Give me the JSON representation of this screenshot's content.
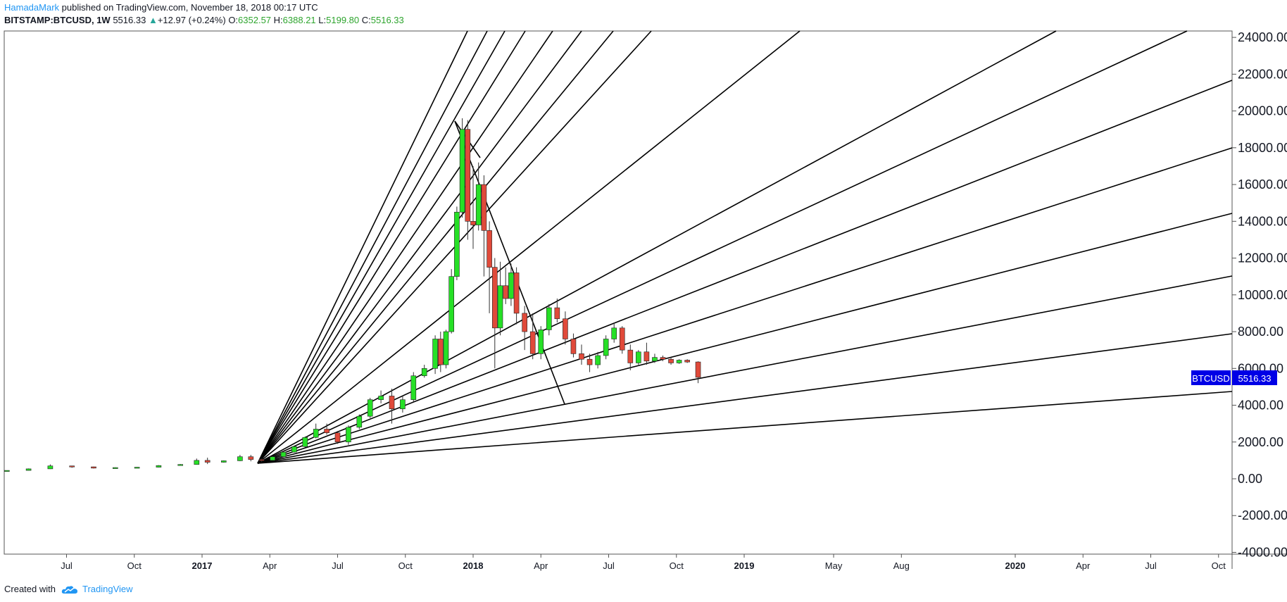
{
  "header": {
    "author": "HamadaMark",
    "published_text": "published on TradingView.com, November 18, 2018 00:17 UTC",
    "symbol": "BITSTAMP:BTCUSD, 1W",
    "last": "5516.33",
    "change": "+12.97 (+0.24%)",
    "o_label": "O:",
    "o_value": "6352.57",
    "h_label": "H:",
    "h_value": "6388.21",
    "l_label": "L:",
    "l_value": "5199.80",
    "c_label": "C:",
    "c_value": "5516.33"
  },
  "footer": {
    "created_with": "Created with",
    "brand": "TradingView"
  },
  "colors": {
    "up": "#26e026",
    "down": "#e04a3a",
    "label_bg": "#0000e6",
    "line": "#000000"
  },
  "chart_data": {
    "type": "candlestick",
    "title": "BITSTAMP:BTCUSD, 1W",
    "price_label": {
      "symbol": "BTCUSD",
      "value": "5516.33"
    },
    "y_ticks": [
      {
        "v": 24000,
        "label": "24000.00"
      },
      {
        "v": 22000,
        "label": "22000.00"
      },
      {
        "v": 20000,
        "label": "20000.00"
      },
      {
        "v": 18000,
        "label": "18000.00"
      },
      {
        "v": 16000,
        "label": "16000.00"
      },
      {
        "v": 14000,
        "label": "14000.00"
      },
      {
        "v": 12000,
        "label": "12000.00"
      },
      {
        "v": 10000,
        "label": "10000.00"
      },
      {
        "v": 8000,
        "label": "8000.00"
      },
      {
        "v": 6000,
        "label": "6000.00"
      },
      {
        "v": 4000,
        "label": "4000.00"
      },
      {
        "v": 2000,
        "label": "2000.00"
      },
      {
        "v": 0,
        "label": "0.00"
      },
      {
        "v": -2000,
        "label": "-2000.00"
      },
      {
        "v": -4000,
        "label": "-4000.00"
      }
    ],
    "x_ticks": [
      {
        "t": 2016.5,
        "label": "Jul",
        "bold": false
      },
      {
        "t": 2016.75,
        "label": "Oct",
        "bold": false
      },
      {
        "t": 2017.0,
        "label": "2017",
        "bold": true
      },
      {
        "t": 2017.25,
        "label": "Apr",
        "bold": false
      },
      {
        "t": 2017.5,
        "label": "Jul",
        "bold": false
      },
      {
        "t": 2017.75,
        "label": "Oct",
        "bold": false
      },
      {
        "t": 2018.0,
        "label": "2018",
        "bold": true
      },
      {
        "t": 2018.25,
        "label": "Apr",
        "bold": false
      },
      {
        "t": 2018.5,
        "label": "Jul",
        "bold": false
      },
      {
        "t": 2018.75,
        "label": "Oct",
        "bold": false
      },
      {
        "t": 2019.0,
        "label": "2019",
        "bold": true
      },
      {
        "t": 2019.33,
        "label": "May",
        "bold": false
      },
      {
        "t": 2019.58,
        "label": "Aug",
        "bold": false
      },
      {
        "t": 2020.0,
        "label": "2020",
        "bold": true
      },
      {
        "t": 2020.25,
        "label": "Apr",
        "bold": false
      },
      {
        "t": 2020.5,
        "label": "Jul",
        "bold": false
      },
      {
        "t": 2020.75,
        "label": "Oct",
        "bold": false
      }
    ],
    "candles": [
      {
        "t": 2016.2,
        "o": 430,
        "h": 440,
        "l": 420,
        "c": 435
      },
      {
        "t": 2016.28,
        "o": 435,
        "h": 460,
        "l": 430,
        "c": 455
      },
      {
        "t": 2016.36,
        "o": 455,
        "h": 560,
        "l": 450,
        "c": 540
      },
      {
        "t": 2016.44,
        "o": 540,
        "h": 780,
        "l": 530,
        "c": 700
      },
      {
        "t": 2016.52,
        "o": 700,
        "h": 710,
        "l": 600,
        "c": 650
      },
      {
        "t": 2016.6,
        "o": 650,
        "h": 660,
        "l": 560,
        "c": 580
      },
      {
        "t": 2016.68,
        "o": 580,
        "h": 620,
        "l": 570,
        "c": 610
      },
      {
        "t": 2016.76,
        "o": 610,
        "h": 640,
        "l": 600,
        "c": 630
      },
      {
        "t": 2016.84,
        "o": 630,
        "h": 740,
        "l": 620,
        "c": 720
      },
      {
        "t": 2016.92,
        "o": 720,
        "h": 800,
        "l": 710,
        "c": 780
      },
      {
        "t": 2016.98,
        "o": 780,
        "h": 1100,
        "l": 770,
        "c": 1000
      },
      {
        "t": 2017.02,
        "o": 1000,
        "h": 1150,
        "l": 800,
        "c": 900
      },
      {
        "t": 2017.08,
        "o": 900,
        "h": 1000,
        "l": 880,
        "c": 980
      },
      {
        "t": 2017.14,
        "o": 980,
        "h": 1300,
        "l": 960,
        "c": 1200
      },
      {
        "t": 2017.18,
        "o": 1200,
        "h": 1300,
        "l": 950,
        "c": 1050
      },
      {
        "t": 2017.22,
        "o": 1050,
        "h": 1100,
        "l": 900,
        "c": 1000
      },
      {
        "t": 2017.26,
        "o": 1000,
        "h": 1250,
        "l": 990,
        "c": 1200
      },
      {
        "t": 2017.3,
        "o": 1200,
        "h": 1500,
        "l": 1180,
        "c": 1450
      },
      {
        "t": 2017.34,
        "o": 1450,
        "h": 1800,
        "l": 1420,
        "c": 1750
      },
      {
        "t": 2017.38,
        "o": 1750,
        "h": 2300,
        "l": 1700,
        "c": 2250
      },
      {
        "t": 2017.42,
        "o": 2250,
        "h": 3000,
        "l": 2200,
        "c": 2700
      },
      {
        "t": 2017.46,
        "o": 2700,
        "h": 3000,
        "l": 2400,
        "c": 2500
      },
      {
        "t": 2017.5,
        "o": 2500,
        "h": 2600,
        "l": 1900,
        "c": 2000
      },
      {
        "t": 2017.54,
        "o": 2000,
        "h": 2900,
        "l": 1850,
        "c": 2800
      },
      {
        "t": 2017.58,
        "o": 2800,
        "h": 3500,
        "l": 2700,
        "c": 3400
      },
      {
        "t": 2017.62,
        "o": 3400,
        "h": 4400,
        "l": 3300,
        "c": 4300
      },
      {
        "t": 2017.66,
        "o": 4300,
        "h": 4800,
        "l": 4100,
        "c": 4500
      },
      {
        "t": 2017.7,
        "o": 4500,
        "h": 4900,
        "l": 3000,
        "c": 3800
      },
      {
        "t": 2017.74,
        "o": 3800,
        "h": 4500,
        "l": 3600,
        "c": 4300
      },
      {
        "t": 2017.78,
        "o": 4300,
        "h": 5800,
        "l": 4200,
        "c": 5600
      },
      {
        "t": 2017.82,
        "o": 5600,
        "h": 6200,
        "l": 5500,
        "c": 6000
      },
      {
        "t": 2017.86,
        "o": 6000,
        "h": 7800,
        "l": 5700,
        "c": 7600
      },
      {
        "t": 2017.88,
        "o": 7600,
        "h": 8000,
        "l": 5800,
        "c": 6200
      },
      {
        "t": 2017.9,
        "o": 6200,
        "h": 8100,
        "l": 6000,
        "c": 8000
      },
      {
        "t": 2017.92,
        "o": 8000,
        "h": 11400,
        "l": 7900,
        "c": 11000
      },
      {
        "t": 2017.94,
        "o": 11000,
        "h": 14800,
        "l": 10800,
        "c": 14500
      },
      {
        "t": 2017.96,
        "o": 14500,
        "h": 19600,
        "l": 14200,
        "c": 19000
      },
      {
        "t": 2017.98,
        "o": 19000,
        "h": 19500,
        "l": 13000,
        "c": 14000
      },
      {
        "t": 2018.0,
        "o": 14000,
        "h": 17000,
        "l": 12500,
        "c": 13800
      },
      {
        "t": 2018.02,
        "o": 13800,
        "h": 17200,
        "l": 13500,
        "c": 16000
      },
      {
        "t": 2018.04,
        "o": 16000,
        "h": 16500,
        "l": 11000,
        "c": 13500
      },
      {
        "t": 2018.06,
        "o": 13500,
        "h": 14000,
        "l": 9000,
        "c": 11500
      },
      {
        "t": 2018.08,
        "o": 11500,
        "h": 12000,
        "l": 6000,
        "c": 8200
      },
      {
        "t": 2018.1,
        "o": 8200,
        "h": 11800,
        "l": 7800,
        "c": 10500
      },
      {
        "t": 2018.12,
        "o": 10500,
        "h": 11500,
        "l": 9500,
        "c": 9800
      },
      {
        "t": 2018.14,
        "o": 9800,
        "h": 11700,
        "l": 9400,
        "c": 11200
      },
      {
        "t": 2018.16,
        "o": 11200,
        "h": 11500,
        "l": 8400,
        "c": 9000
      },
      {
        "t": 2018.19,
        "o": 9000,
        "h": 9400,
        "l": 7000,
        "c": 8000
      },
      {
        "t": 2018.22,
        "o": 8000,
        "h": 9000,
        "l": 6500,
        "c": 6800
      },
      {
        "t": 2018.25,
        "o": 6800,
        "h": 8300,
        "l": 6500,
        "c": 8100
      },
      {
        "t": 2018.28,
        "o": 8100,
        "h": 9500,
        "l": 7800,
        "c": 9300
      },
      {
        "t": 2018.31,
        "o": 9300,
        "h": 9800,
        "l": 8500,
        "c": 8700
      },
      {
        "t": 2018.34,
        "o": 8700,
        "h": 9100,
        "l": 7300,
        "c": 7600
      },
      {
        "t": 2018.37,
        "o": 7600,
        "h": 7900,
        "l": 6600,
        "c": 6800
      },
      {
        "t": 2018.4,
        "o": 6800,
        "h": 7300,
        "l": 6200,
        "c": 6500
      },
      {
        "t": 2018.43,
        "o": 6500,
        "h": 6800,
        "l": 5800,
        "c": 6200
      },
      {
        "t": 2018.46,
        "o": 6200,
        "h": 6900,
        "l": 6000,
        "c": 6700
      },
      {
        "t": 2018.49,
        "o": 6700,
        "h": 7800,
        "l": 6500,
        "c": 7600
      },
      {
        "t": 2018.52,
        "o": 7600,
        "h": 8500,
        "l": 7400,
        "c": 8200
      },
      {
        "t": 2018.55,
        "o": 8200,
        "h": 8300,
        "l": 6800,
        "c": 7000
      },
      {
        "t": 2018.58,
        "o": 7000,
        "h": 7300,
        "l": 5900,
        "c": 6300
      },
      {
        "t": 2018.61,
        "o": 6300,
        "h": 7000,
        "l": 6200,
        "c": 6900
      },
      {
        "t": 2018.64,
        "o": 6900,
        "h": 7400,
        "l": 6200,
        "c": 6400
      },
      {
        "t": 2018.67,
        "o": 6400,
        "h": 6800,
        "l": 6300,
        "c": 6600
      },
      {
        "t": 2018.7,
        "o": 6600,
        "h": 6700,
        "l": 6400,
        "c": 6500
      },
      {
        "t": 2018.73,
        "o": 6500,
        "h": 6600,
        "l": 6200,
        "c": 6300
      },
      {
        "t": 2018.76,
        "o": 6300,
        "h": 6500,
        "l": 6250,
        "c": 6450
      },
      {
        "t": 2018.79,
        "o": 6450,
        "h": 6500,
        "l": 6300,
        "c": 6350
      },
      {
        "t": 2018.83,
        "o": 6352.57,
        "h": 6388.21,
        "l": 5199.8,
        "c": 5516.33
      }
    ]
  }
}
